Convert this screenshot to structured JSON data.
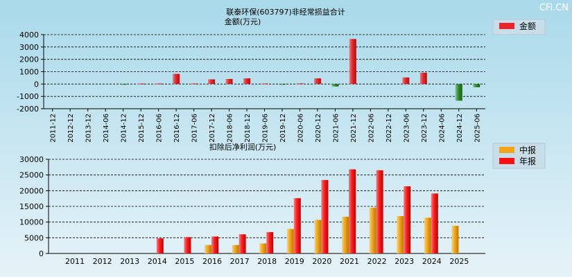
{
  "watermark": "CFi.CN",
  "colors": {
    "background_top": "#a9d9ea",
    "background_bottom": "#e6f3f8",
    "positive": "#e8262b",
    "negative": "#2e8b2e",
    "interim": "#f2a516",
    "annual": "#ff1010"
  },
  "chart_data": [
    {
      "type": "bar",
      "title": "联泰环保(603797)非经常损益合计",
      "subtitle": "金额(万元)",
      "legend": [
        "金额"
      ],
      "legend_position": "top-right",
      "grid": true,
      "ylim": [
        -2000,
        4000
      ],
      "yticks": [
        "4000",
        "3000",
        "2000",
        "1000",
        "0",
        "-1000",
        "-2000"
      ],
      "categories": [
        "2011-12",
        "2012-12",
        "2013-12",
        "2014-06",
        "2014-12",
        "2015-12",
        "2016-06",
        "2016-12",
        "2017-06",
        "2017-12",
        "2018-06",
        "2018-12",
        "2019-06",
        "2019-12",
        "2020-06",
        "2020-12",
        "2021-06",
        "2021-12",
        "2022-06",
        "2022-12",
        "2023-06",
        "2023-12",
        "2024-06",
        "2024-12",
        "2025-06"
      ],
      "series": [
        {
          "name": "金额",
          "values": [
            0,
            0,
            0,
            0,
            -20,
            30,
            40,
            820,
            40,
            380,
            410,
            460,
            40,
            -30,
            50,
            460,
            -200,
            3650,
            0,
            0,
            530,
            920,
            0,
            -1350,
            -260
          ]
        }
      ]
    },
    {
      "type": "bar",
      "title": "扣除后净利润(万元)",
      "legend": [
        "中报",
        "年报"
      ],
      "legend_position": "top-right",
      "grid": true,
      "ylim": [
        0,
        30000
      ],
      "yticks": [
        "30000",
        "25000",
        "20000",
        "15000",
        "10000",
        "5000",
        "0"
      ],
      "categories": [
        "2011",
        "2012",
        "2013",
        "2014",
        "2015",
        "2016",
        "2017",
        "2018",
        "2019",
        "2020",
        "2021",
        "2022",
        "2023",
        "2024",
        "2025"
      ],
      "series": [
        {
          "name": "中报",
          "values": [
            0,
            0,
            0,
            0,
            0,
            2700,
            2700,
            3200,
            7800,
            10700,
            11700,
            14600,
            11900,
            11400,
            8800
          ]
        },
        {
          "name": "年报",
          "values": [
            0,
            0,
            0,
            4800,
            5200,
            5400,
            6100,
            6800,
            17600,
            23400,
            26800,
            26500,
            21400,
            19100,
            null
          ]
        }
      ]
    }
  ]
}
